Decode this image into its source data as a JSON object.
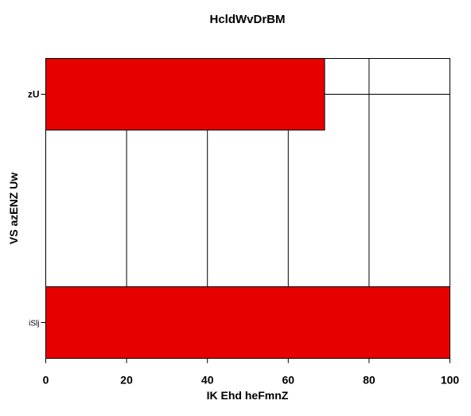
{
  "chart_data": {
    "type": "bar",
    "orientation": "horizontal",
    "title": "HcldWvDrBM",
    "xlabel": "IK Ehd heFmnZ",
    "ylabel": "VS  azENZ Uw",
    "categories": [
      "zU",
      "iSlj"
    ],
    "values": [
      69,
      100
    ],
    "xlim": [
      0,
      100
    ],
    "xticks": [
      "0",
      "20",
      "40",
      "60",
      "80",
      "100"
    ],
    "grid": true,
    "bar_color": "#e60000"
  }
}
